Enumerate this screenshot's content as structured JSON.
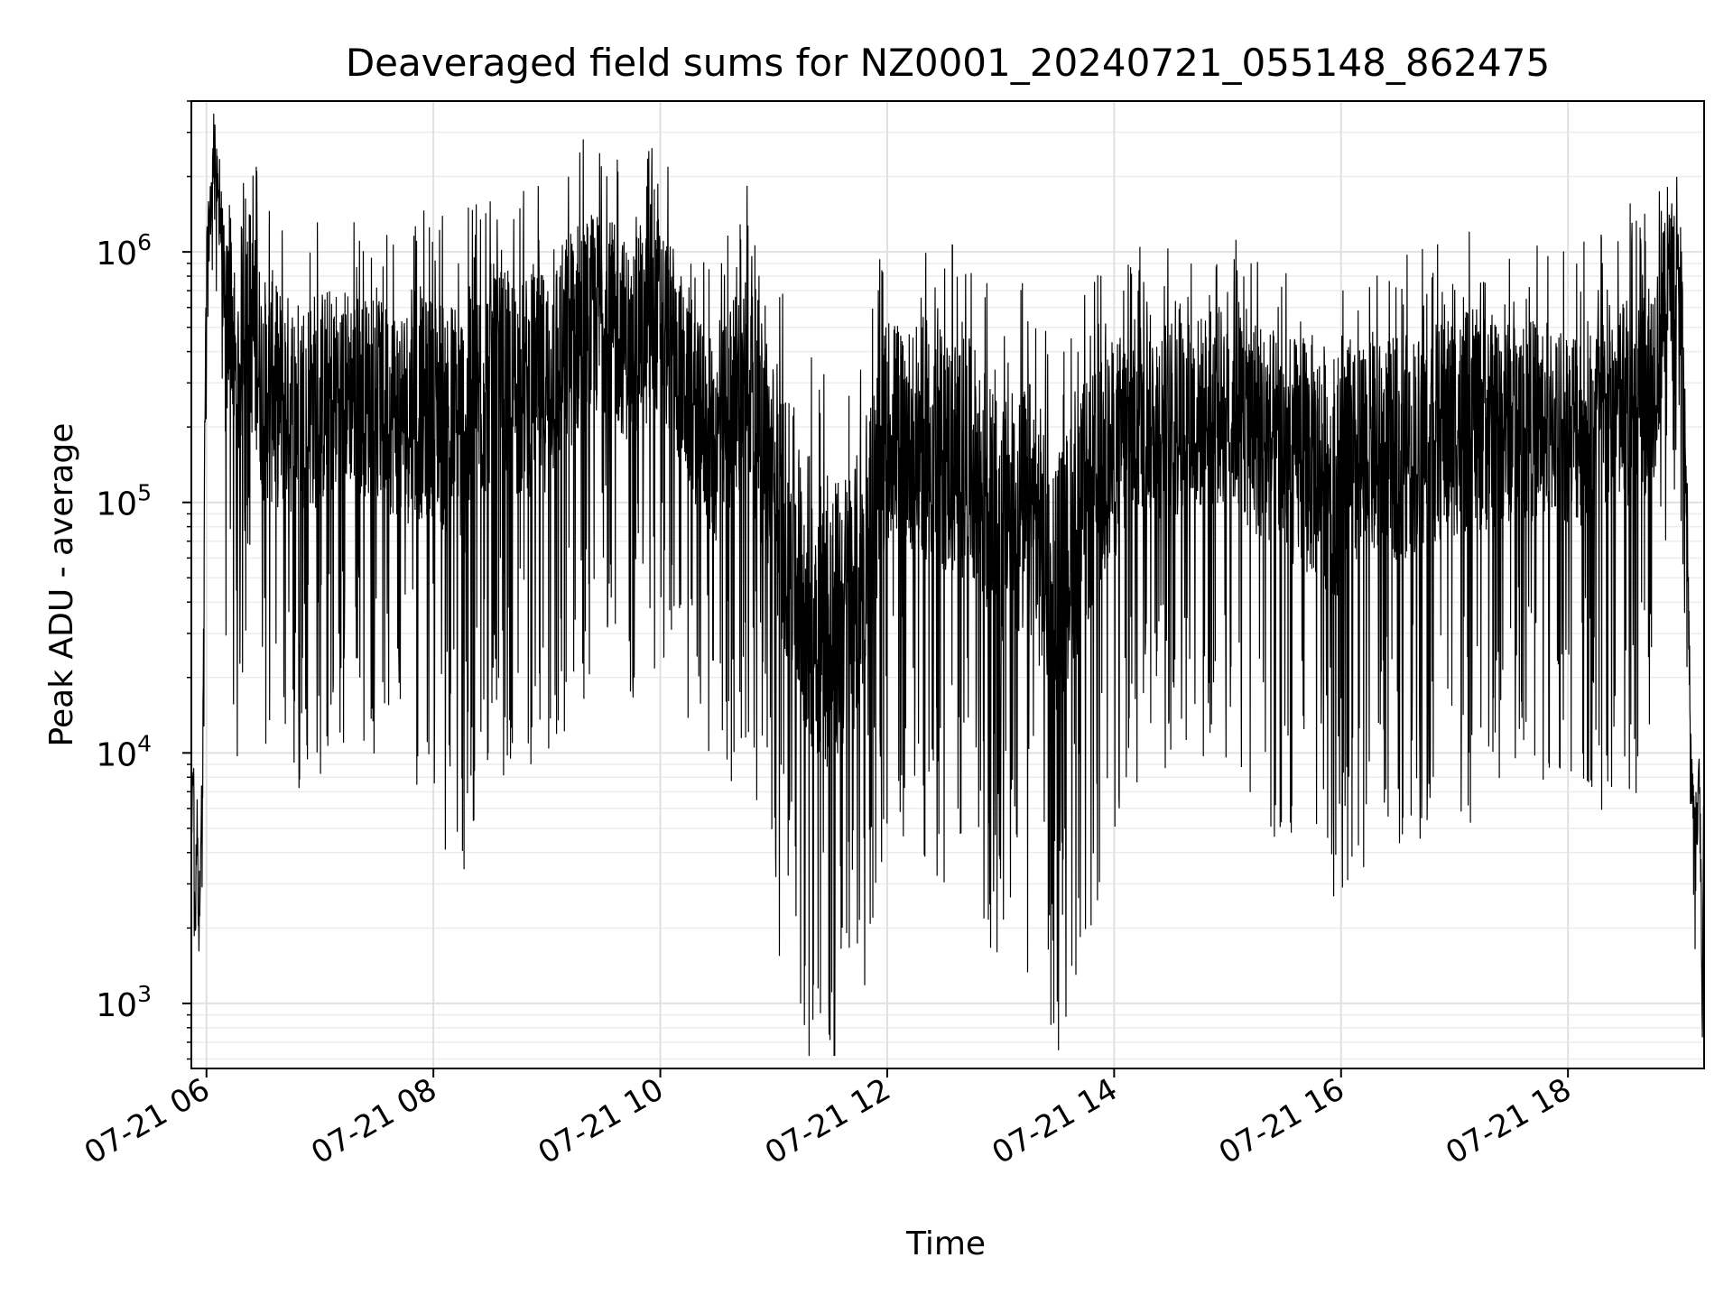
{
  "chart_data": {
    "type": "line",
    "title": "Deaveraged field sums for NZ0001_20240721_055148_862475",
    "xlabel": "Time",
    "ylabel": "Peak ADU - average",
    "yscale": "log",
    "ylim": [
      550,
      4000000
    ],
    "xlim": [
      "2024-07-21 05:52",
      "2024-07-21 19:12"
    ],
    "grid": true,
    "line_color": "#000000",
    "x_ticks": [
      {
        "t": "2024-07-21 06:00",
        "label": "07-21 06"
      },
      {
        "t": "2024-07-21 08:00",
        "label": "07-21 08"
      },
      {
        "t": "2024-07-21 10:00",
        "label": "07-21 10"
      },
      {
        "t": "2024-07-21 12:00",
        "label": "07-21 12"
      },
      {
        "t": "2024-07-21 14:00",
        "label": "07-21 14"
      },
      {
        "t": "2024-07-21 16:00",
        "label": "07-21 16"
      },
      {
        "t": "2024-07-21 18:00",
        "label": "07-21 18"
      }
    ],
    "y_ticks": [
      {
        "value": 1000,
        "mantissa": "10",
        "exp": "3"
      },
      {
        "value": 10000,
        "mantissa": "10",
        "exp": "4"
      },
      {
        "value": 100000,
        "mantissa": "10",
        "exp": "5"
      },
      {
        "value": 1000000,
        "mantissa": "10",
        "exp": "6"
      }
    ],
    "series": [
      {
        "x": [
          "2024-07-21 05:52",
          "2024-07-21 05:53",
          "2024-07-21 05:54",
          "2024-07-21 05:55",
          "2024-07-21 05:56",
          "2024-07-21 05:57",
          "2024-07-21 05:58",
          "2024-07-21 05:59",
          "2024-07-21 06:00",
          "2024-07-21 06:02",
          "2024-07-21 06:04",
          "2024-07-21 06:06",
          "2024-07-21 06:08",
          "2024-07-21 06:10",
          "2024-07-21 06:13",
          "2024-07-21 06:16",
          "2024-07-21 06:20",
          "2024-07-21 06:30",
          "2024-07-21 06:45",
          "2024-07-21 07:00",
          "2024-07-21 07:15",
          "2024-07-21 07:30",
          "2024-07-21 07:45",
          "2024-07-21 08:00",
          "2024-07-21 08:15",
          "2024-07-21 08:30",
          "2024-07-21 08:45",
          "2024-07-21 09:00",
          "2024-07-21 09:15",
          "2024-07-21 09:30",
          "2024-07-21 09:45",
          "2024-07-21 10:00",
          "2024-07-21 10:15",
          "2024-07-21 10:30",
          "2024-07-21 10:45",
          "2024-07-21 11:00",
          "2024-07-21 11:15",
          "2024-07-21 11:30",
          "2024-07-21 11:45",
          "2024-07-21 12:00",
          "2024-07-21 12:15",
          "2024-07-21 12:30",
          "2024-07-21 12:45",
          "2024-07-21 13:00",
          "2024-07-21 13:15",
          "2024-07-21 13:30",
          "2024-07-21 13:45",
          "2024-07-21 14:00",
          "2024-07-21 14:15",
          "2024-07-21 14:30",
          "2024-07-21 14:45",
          "2024-07-21 15:00",
          "2024-07-21 15:15",
          "2024-07-21 15:30",
          "2024-07-21 15:45",
          "2024-07-21 16:00",
          "2024-07-21 16:15",
          "2024-07-21 16:30",
          "2024-07-21 16:45",
          "2024-07-21 17:00",
          "2024-07-21 17:15",
          "2024-07-21 17:30",
          "2024-07-21 17:45",
          "2024-07-21 18:00",
          "2024-07-21 18:15",
          "2024-07-21 18:30",
          "2024-07-21 18:45",
          "2024-07-21 18:55",
          "2024-07-21 19:00",
          "2024-07-21 19:03",
          "2024-07-21 19:05",
          "2024-07-21 19:07",
          "2024-07-21 19:09",
          "2024-07-21 19:10",
          "2024-07-21 19:11",
          "2024-07-21 19:12"
        ],
        "y": [
          3000,
          12000,
          1800,
          6000,
          2000,
          5500,
          8000,
          150000,
          1000000,
          1500000,
          2700000,
          1800000,
          1300000,
          500000,
          800000,
          300000,
          900000,
          350000,
          300000,
          320000,
          350000,
          300000,
          280000,
          300000,
          250000,
          400000,
          350000,
          380000,
          600000,
          700000,
          500000,
          700000,
          300000,
          200000,
          450000,
          150000,
          60000,
          40000,
          60000,
          250000,
          220000,
          200000,
          180000,
          100000,
          120000,
          60000,
          120000,
          200000,
          280000,
          250000,
          270000,
          300000,
          250000,
          200000,
          190000,
          160000,
          190000,
          200000,
          220000,
          250000,
          260000,
          250000,
          260000,
          250000,
          260000,
          300000,
          400000,
          1000000,
          700000,
          100000,
          9000,
          5000,
          7000,
          5500,
          800,
          9000
        ],
        "noise_band": [
          0.3,
          0.3,
          0.3,
          0.3,
          0.3,
          0.3,
          0.3,
          0.5,
          0.3,
          0.3,
          0.3,
          0.3,
          0.4,
          0.9,
          0.9,
          0.9,
          1.0,
          1.0,
          1.0,
          1.0,
          0.9,
          0.9,
          1.0,
          1.0,
          1.2,
          1.0,
          1.0,
          1.0,
          1.0,
          0.9,
          0.9,
          0.9,
          0.8,
          0.9,
          1.0,
          1.1,
          1.3,
          1.3,
          1.2,
          1.0,
          1.0,
          1.1,
          1.1,
          1.1,
          1.2,
          1.2,
          1.1,
          1.0,
          0.9,
          0.9,
          0.9,
          0.9,
          1.0,
          1.0,
          1.1,
          1.1,
          1.0,
          1.0,
          1.0,
          1.0,
          1.0,
          0.9,
          0.9,
          0.9,
          1.0,
          1.0,
          1.0,
          0.6,
          0.6,
          0.5,
          0.3,
          0.3,
          0.3,
          0.3,
          0.3,
          0.3
        ]
      }
    ]
  }
}
